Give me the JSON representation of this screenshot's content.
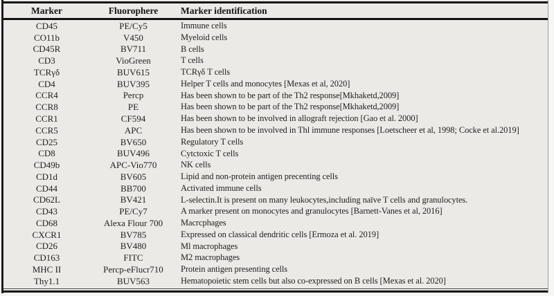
{
  "colors": {
    "page_background": "#f6f6f4",
    "table_background": "#ebeae7",
    "rule_color": "#111111",
    "text_color": "#1f1f1f"
  },
  "table": {
    "headers": [
      "Marker",
      "Fluorophere",
      "Marker identification"
    ],
    "rows": [
      {
        "marker": "CD45",
        "fluorophore": "PE/Cy5",
        "identification": "Immune cells"
      },
      {
        "marker": "CO11b",
        "fluorophore": "V450",
        "identification": "Myeloid cells"
      },
      {
        "marker": "CD45R",
        "fluorophore": "BV711",
        "identification": "B cells"
      },
      {
        "marker": "CD3",
        "fluorophore": "VioGreen",
        "identification": "T cells"
      },
      {
        "marker": "TCRγδ",
        "fluorophore": "BUV615",
        "identification": "TCRγδ T cells"
      },
      {
        "marker": "CD4",
        "fluorophore": "BUV395",
        "identification": "Helper T cells and monocytes [Mexas et al, 2020]"
      },
      {
        "marker": "CCR4",
        "fluorophore": "Percp",
        "identification": "Has been shown to be part of the Th2 response[Mkhaketd,2009]"
      },
      {
        "marker": "CCR8",
        "fluorophore": "PE",
        "identification": "Has been shown to be part of the Th2 response[Mkhaketd,2009]"
      },
      {
        "marker": "CCR1",
        "fluorophore": "CF594",
        "identification": "Has been shown to be involved in allograft rejection [Gao et al. 2000]"
      },
      {
        "marker": "CCR5",
        "fluorophore": "APC",
        "identification": "Has been shown to be involved in Thl immune responses [Loetscheer et al, 1998; Cocke et al.2019]"
      },
      {
        "marker": "CD25",
        "fluorophore": "BV650",
        "identification": "Regulatory T cells"
      },
      {
        "marker": "CD8",
        "fluorophore": "BUV496",
        "identification": "Cytctoxic T cells"
      },
      {
        "marker": "CD49b",
        "fluorophore": "APC-Vio770",
        "identification": "NK cells"
      },
      {
        "marker": "CD1d",
        "fluorophore": "BV605",
        "identification": "Lipid and non-protein antigen precenting cells"
      },
      {
        "marker": "CD44",
        "fluorophore": "BB700",
        "identification": "Activated immune cells"
      },
      {
        "marker": "CD62L",
        "fluorophore": "BV421",
        "identification": "L-selectin.It is present on many leukocytes,including naïve T cells and granulocytes."
      },
      {
        "marker": "CD43",
        "fluorophore": "PE/Cy7",
        "identification": "A marker present on monocytes and granulocytes [Barnett-Vanes et al, 2016]"
      },
      {
        "marker": "CD68",
        "fluorophore": "Alexa Flour 700",
        "identification": "Macrcphages"
      },
      {
        "marker": "CXCR1",
        "fluorophore": "BV785",
        "identification": "Expressed on classical dendritic cells [Ermoza et al. 2019]"
      },
      {
        "marker": "CD26",
        "fluorophore": "BV480",
        "identification": "Ml macrophages"
      },
      {
        "marker": "CD163",
        "fluorophore": "FITC",
        "identification": "M2 macrophages"
      },
      {
        "marker": "MHC II",
        "fluorophore": "Percp-eFlucr710",
        "identification": "Protein antigen presenting cells"
      },
      {
        "marker": "Thy1.1",
        "fluorophore": "BUV563",
        "identification": "Hematopoietic stem cells but also co-expressed on B cells [Mexas et al. 2020]"
      }
    ]
  }
}
